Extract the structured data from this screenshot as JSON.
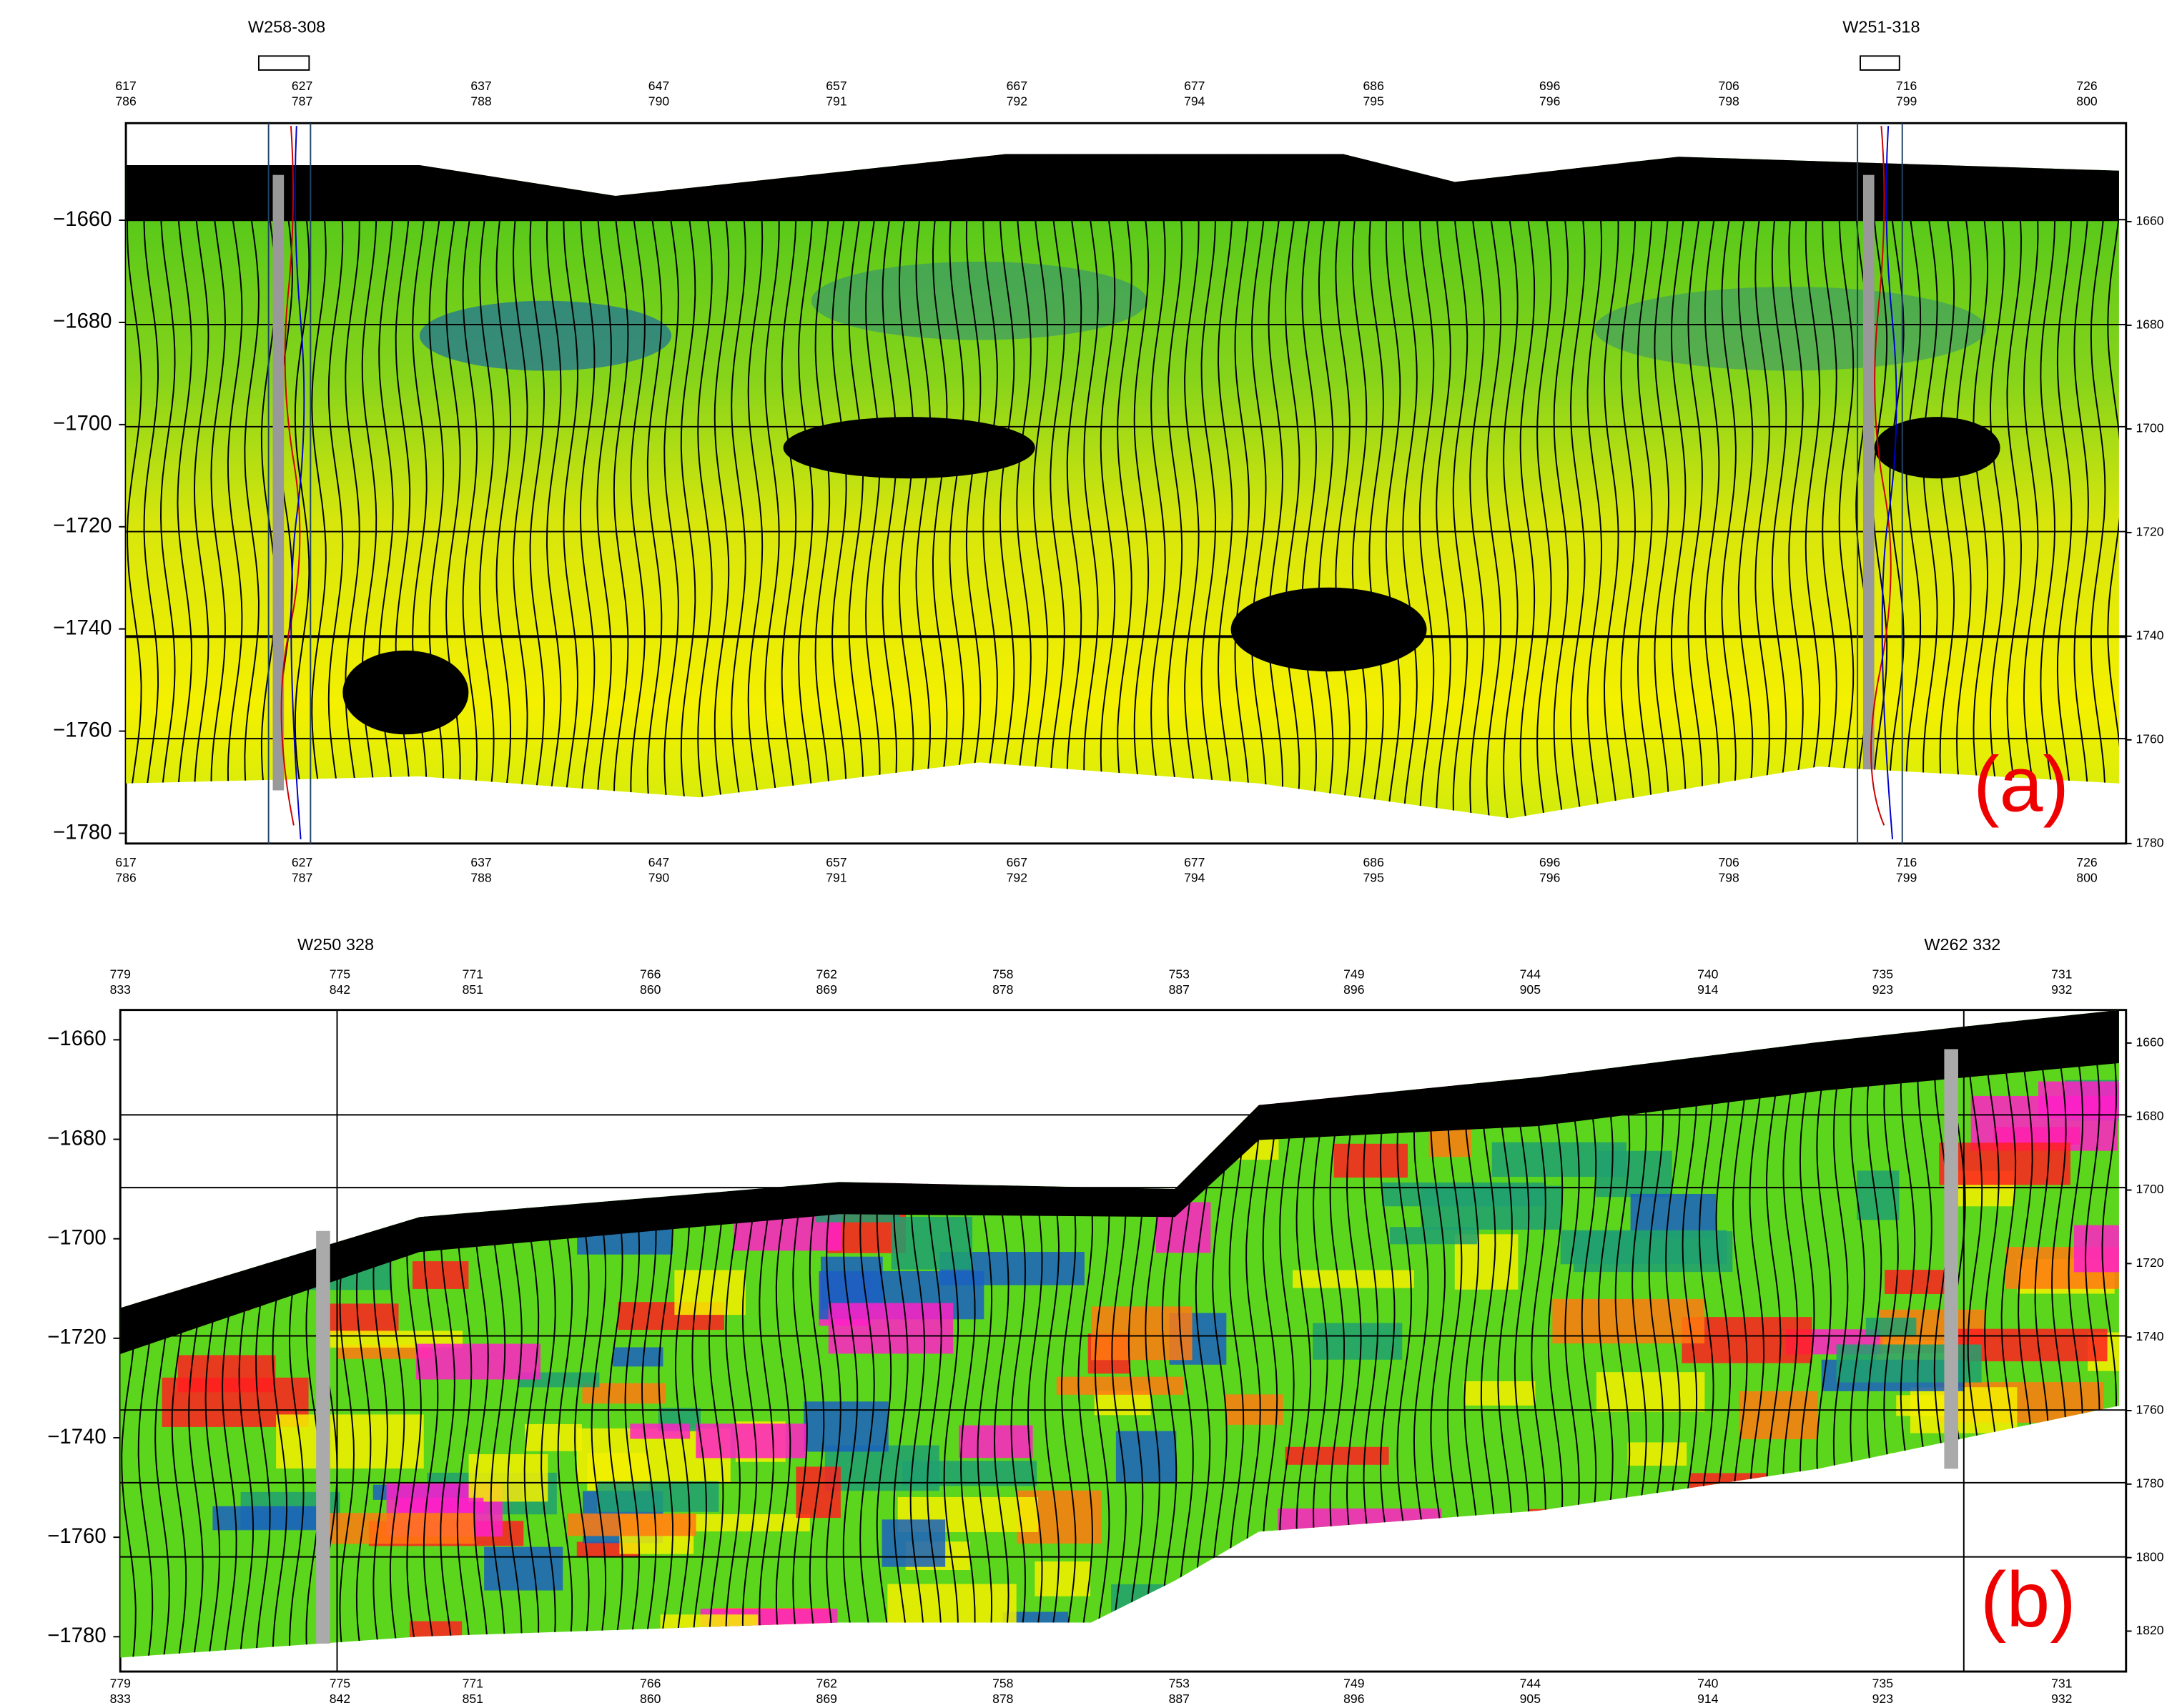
{
  "panels": [
    {
      "label": "(a)",
      "wells": [
        "W258-308",
        "W251-318"
      ],
      "top_row1": [
        "617",
        "627",
        "637",
        "647",
        "657",
        "667",
        "677",
        "686",
        "696",
        "706",
        "716",
        "726"
      ],
      "top_row2": [
        "786",
        "787",
        "788",
        "790",
        "791",
        "792",
        "794",
        "795",
        "796",
        "798",
        "799",
        "800"
      ],
      "depth_range": [
        -1782,
        -1641
      ],
      "depth_ticks": [
        {
          "value": -1660,
          "label": "−1660"
        },
        {
          "value": -1680,
          "label": "−1680"
        },
        {
          "value": -1700,
          "label": "−1700"
        },
        {
          "value": -1720,
          "label": "−1720"
        },
        {
          "value": -1740,
          "label": "−1740"
        },
        {
          "value": -1760,
          "label": "−1760"
        },
        {
          "value": -1780,
          "label": "−1780"
        }
      ],
      "right_range": [
        1641,
        1780
      ],
      "right_ticks": [
        1660,
        1680,
        1700,
        1720,
        1740,
        1760,
        1780
      ]
    },
    {
      "label": "(b)",
      "wells": [
        "W250 328",
        "W262 332"
      ],
      "top_row1": [
        "779",
        "775",
        "771",
        "766",
        "762",
        "758",
        "753",
        "749",
        "744",
        "740",
        "735",
        "731"
      ],
      "top_row2": [
        "833",
        "842",
        "851",
        "860",
        "869",
        "878",
        "887",
        "896",
        "905",
        "914",
        "923",
        "932"
      ],
      "depth_range": [
        -1787,
        -1654
      ],
      "depth_ticks": [
        {
          "value": -1660,
          "label": "−1660"
        },
        {
          "value": -1680,
          "label": "−1680"
        },
        {
          "value": -1700,
          "label": "−1700"
        },
        {
          "value": -1720,
          "label": "−1720"
        },
        {
          "value": -1740,
          "label": "−1740"
        },
        {
          "value": -1760,
          "label": "−1760"
        },
        {
          "value": -1780,
          "label": "−1780"
        }
      ],
      "right_range": [
        1651,
        1831
      ],
      "right_ticks": [
        1660,
        1680,
        1700,
        1720,
        1740,
        1760,
        1780,
        1800,
        1820
      ]
    }
  ]
}
